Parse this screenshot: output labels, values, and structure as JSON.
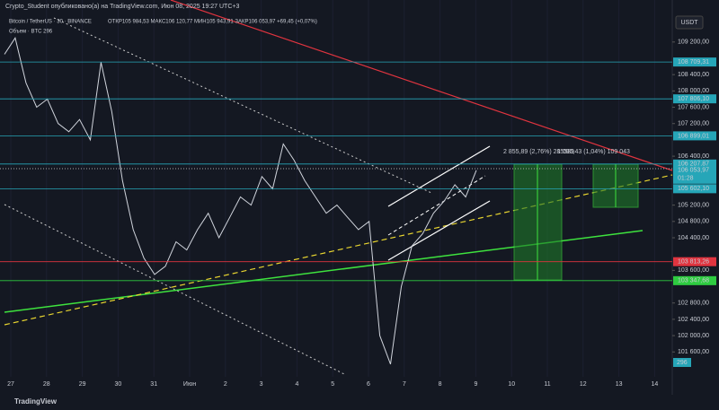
{
  "header": {
    "author_line": "Crypto_Student опубликовано(а) на TradingView.com, Июн 08, 2025 19:27 UTC+3",
    "symbol": "Bitcoin / TetherUS · 30 · BINANCE",
    "ohlc": "ОТКР105 984,53  МАКС106 120,77  МИН105 943,91  ЗАКР106 053,97 +69,45 (+0,07%)",
    "volume": "Объем · BTC 296"
  },
  "currency": "USDT",
  "ylim": [
    100880,
    110230
  ],
  "yticks": [
    {
      "value": 109200,
      "label": "109 200,00"
    },
    {
      "value": 108400,
      "label": "108 400,00"
    },
    {
      "value": 108000,
      "label": "108 000,00"
    },
    {
      "value": 107600,
      "label": "107 600,00"
    },
    {
      "value": 107200,
      "label": "107 200,00"
    },
    {
      "value": 106400,
      "label": "106 400,00"
    },
    {
      "value": 105200,
      "label": "105 200,00"
    },
    {
      "value": 104800,
      "label": "104 800,00"
    },
    {
      "value": 104400,
      "label": "104 400,00"
    },
    {
      "value": 103600,
      "label": "103 600,00"
    },
    {
      "value": 102800,
      "label": "102 800,00"
    },
    {
      "value": 102400,
      "label": "102 400,00"
    },
    {
      "value": 102000,
      "label": "102 000,00"
    },
    {
      "value": 101600,
      "label": "101 600,00"
    }
  ],
  "price_tags": [
    {
      "value": 108709.31,
      "label": "108 709,31",
      "color": "#26a6b8"
    },
    {
      "value": 107806.1,
      "label": "107 806,10",
      "color": "#26a6b8"
    },
    {
      "value": 106899.01,
      "label": "106 899,01",
      "color": "#26a6b8"
    },
    {
      "value": 106207.87,
      "label": "106 207,87",
      "color": "#26a6b8"
    },
    {
      "value": 105602.1,
      "label": "105 602,10",
      "color": "#26a6b8"
    },
    {
      "value": 103813.26,
      "label": "103 813,26",
      "color": "#e0343f"
    },
    {
      "value": 103347.68,
      "label": "103 347,68",
      "color": "#2ecc40"
    }
  ],
  "last_price": {
    "value": 106053.97,
    "label": "106 053,97",
    "countdown": "01:28"
  },
  "volume_tag": "296",
  "dates": [
    "27",
    "28",
    "29",
    "30",
    "31",
    "Июн",
    "2",
    "3",
    "4",
    "5",
    "6",
    "7",
    "8",
    "9",
    "10",
    "11",
    "12",
    "13",
    "14"
  ],
  "closes": [
    108900,
    109300,
    108200,
    107600,
    107800,
    107200,
    107000,
    107300,
    106800,
    108700,
    107500,
    105800,
    104600,
    103900,
    103500,
    103700,
    104300,
    104100,
    104600,
    105000,
    104400,
    104900,
    105400,
    105200,
    105900,
    105600,
    106700,
    106300,
    105800,
    105400,
    105000,
    105200,
    104900,
    104600,
    104800,
    102000,
    101300,
    103200,
    104200,
    104500,
    105000,
    105300,
    105700,
    105400,
    106054
  ],
  "measures": [
    "2 855,89 (2,76%) 285589",
    "1 090,43 (1,04%) 109 043"
  ],
  "footer": "TradingView"
}
